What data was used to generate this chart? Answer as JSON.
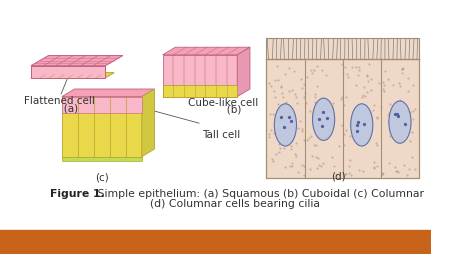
{
  "background_color": "#ffffff",
  "footer_color": "#c8641a",
  "pink_top": "#f4a0b5",
  "pink_front": "#f8b8c8",
  "pink_side": "#e898b0",
  "yellow_col": "#e8d84a",
  "yellow_side": "#d0c840",
  "green_base": "#c8d850",
  "cell_outline": "#c06080",
  "col_outline": "#b8a030",
  "dotted_bg": "#f0d8c8",
  "nucleus_fill": "#c0c8e0",
  "nucleus_edge": "#6070a0",
  "nucleolus": "#5060a0",
  "cilia_color": "#808080",
  "border_color": "#a09070",
  "annotation_color": "#555555",
  "label_color": "#333333",
  "caption_color": "#222222",
  "caption_bold": "Figure 1.",
  "caption_line1": " Simple epithelium: (a) Squamous (b) Cuboidal (c) Columnar",
  "caption_line2": "(d) Columnar cells bearing cilia",
  "label_a1": "Flattened cell",
  "label_a2": "       (a)",
  "label_b1": "Cube-like cell",
  "label_b2": "       (b)",
  "label_tall": "Tall cell",
  "label_d": "(d)",
  "label_c": "(c)"
}
